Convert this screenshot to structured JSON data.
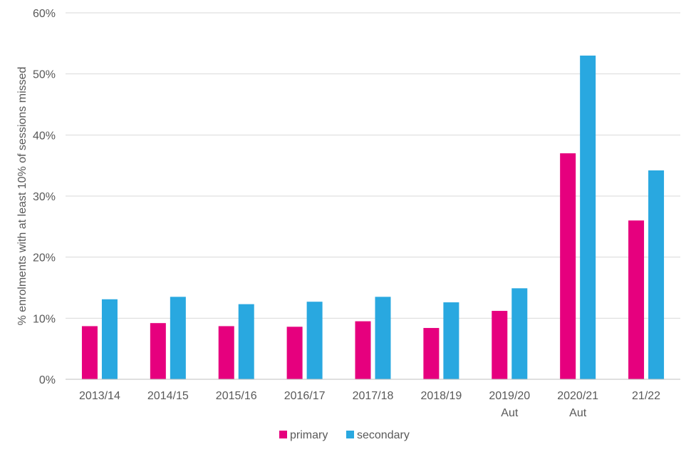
{
  "chart_data": {
    "type": "bar",
    "title": "",
    "xlabel": "",
    "ylabel": "% enrolments with at least 10% of sessions missed",
    "ylim": [
      0,
      60
    ],
    "yticks": [
      "0%",
      "10%",
      "20%",
      "30%",
      "40%",
      "50%",
      "60%"
    ],
    "grid": true,
    "legend_position": "bottom",
    "categories": [
      [
        "2013/14"
      ],
      [
        "2014/15"
      ],
      [
        "2015/16"
      ],
      [
        "2016/17"
      ],
      [
        "2017/18"
      ],
      [
        "2018/19"
      ],
      [
        "2019/20",
        "Aut"
      ],
      [
        "2020/21",
        "Aut"
      ],
      [
        "21/22"
      ]
    ],
    "series": [
      {
        "name": "primary",
        "color": "#e6007e",
        "values": [
          8.7,
          9.2,
          8.7,
          8.6,
          9.5,
          8.4,
          11.2,
          37.0,
          26.0
        ]
      },
      {
        "name": "secondary",
        "color": "#29a8e0",
        "values": [
          13.1,
          13.5,
          12.3,
          12.7,
          13.5,
          12.6,
          14.9,
          53.0,
          34.2
        ]
      }
    ]
  }
}
